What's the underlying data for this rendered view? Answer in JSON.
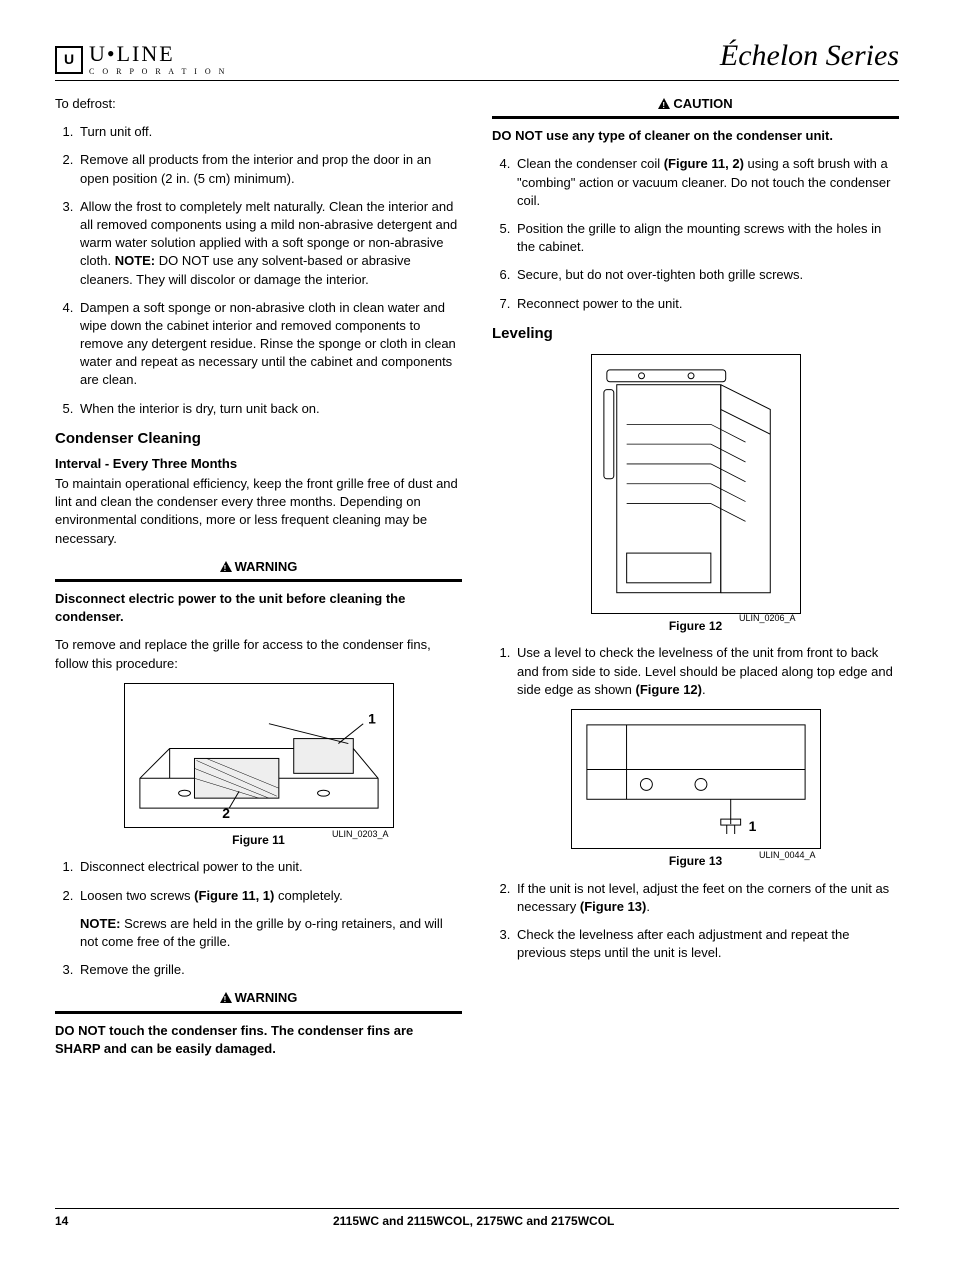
{
  "header": {
    "brand_top": "U•LINE",
    "brand_bottom": "C O R P O R A T I O N",
    "series": "Échelon Series"
  },
  "left": {
    "defrost_intro": "To defrost:",
    "defrost_steps": [
      "Turn unit off.",
      "Remove all products from the interior and prop the door in an open position (2 in. (5 cm) minimum).",
      "Allow the frost to completely melt naturally. Clean the interior and all removed components using a mild non-abrasive detergent and warm water solution applied with a soft sponge or non-abrasive cloth. NOTE: DO NOT use any solvent-based or abrasive cleaners. They will discolor or damage the interior.",
      "Dampen a soft sponge or non-abrasive cloth in clean water and wipe down the cabinet interior and removed components to remove any detergent residue. Rinse the sponge or cloth in clean water and repeat as necessary until the cabinet and components are clean.",
      "When the interior is dry, turn unit back on."
    ],
    "condenser_h": "Condenser Cleaning",
    "interval_h": "Interval - Every Three Months",
    "interval_p": "To maintain operational efficiency, keep the front grille free of dust and lint and clean the condenser every three months. Depending on environmental conditions, more or less frequent cleaning may be necessary.",
    "warn1": "WARNING",
    "warn1_p": "Disconnect electric power to the unit before cleaning the condenser.",
    "grille_p": "To remove and replace the grille for access to the condenser fins, follow this procedure:",
    "fig11_ref": "ULIN_0203_A",
    "fig11_cap": "Figure 11",
    "fig11_l1": "1",
    "fig11_l2": "2",
    "grille_steps_1": "Disconnect electrical power to the unit.",
    "grille_steps_2a": "Loosen two screws ",
    "grille_steps_2b": "(Figure 11, 1)",
    "grille_steps_2c": " completely.",
    "grille_note": "NOTE:",
    "grille_note_t": " Screws are held in the grille by o-ring retainers, and will not come free of the grille.",
    "grille_steps_3": "Remove the grille.",
    "warn2": "WARNING",
    "warn2_p": "DO NOT touch the condenser fins. The condenser fins are SHARP and can be easily damaged."
  },
  "right": {
    "caution": "CAUTION",
    "caution_p": "DO NOT use any type of cleaner on the condenser unit.",
    "steps4a": "Clean the condenser coil ",
    "steps4b": "(Figure 11, 2)",
    "steps4c": " using a soft brush with a \"combing\" action or vacuum cleaner. Do not touch the condenser coil.",
    "steps5": "Position the grille to align the mounting screws with the holes in the cabinet.",
    "steps6": "Secure, but do not over-tighten both grille screws.",
    "steps7": "Reconnect power to the unit.",
    "leveling_h": "Leveling",
    "fig12_ref": "ULIN_0206_A",
    "fig12_cap": "Figure 12",
    "lvl1a": "Use a level to check the levelness of the unit from front to back and from side to side. Level should be placed along top edge and side edge as shown ",
    "lvl1b": "(Figure 12)",
    "lvl1c": ".",
    "fig13_ref": "ULIN_0044_A",
    "fig13_cap": "Figure 13",
    "fig13_l1": "1",
    "lvl2a": "If the unit is not level, adjust the feet on the corners of the unit as necessary ",
    "lvl2b": "(Figure 13)",
    "lvl2c": ".",
    "lvl3": "Check the levelness after each adjustment and repeat the previous steps until the unit is level."
  },
  "footer": {
    "page": "14",
    "models": "2115WC and 2115WCOL, 2175WC and 2175WCOL"
  }
}
